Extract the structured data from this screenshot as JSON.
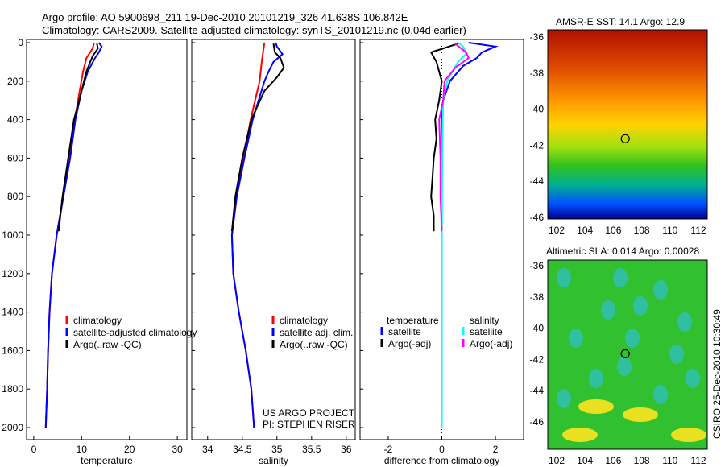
{
  "title": {
    "line1": "Argo profile: AO 5900698_211 19-Dec-2010 20101219_326 41.638S 106.842E",
    "line2": "Climatology: CARS2009. Satellite-adjusted climatology: synTS_20101219.nc (0.04d earlier)"
  },
  "side_label": "CSIRO 25-Dec-2010 10:30:49",
  "colors": {
    "climatology": "#ff0000",
    "satellite": "#0000ff",
    "argo": "#000000",
    "sal_satellite": "#00ffff",
    "sal_argo": "#ff00ff"
  },
  "chart_data": [
    {
      "type": "line",
      "xlabel": "temperature",
      "ylabel": "",
      "xlim": [
        -1.5,
        32
      ],
      "ylim": [
        2000,
        0
      ],
      "xticks": [
        0,
        10,
        20,
        30
      ],
      "yticks": [
        0,
        200,
        400,
        600,
        800,
        1000,
        1200,
        1400,
        1600,
        1800,
        2000
      ],
      "legend": [
        "climatology",
        "satellite-adjusted climatology",
        "Argo(..raw -QC)"
      ],
      "series": [
        {
          "name": "climatology",
          "color": "#ff0000",
          "depth": [
            0,
            30,
            80,
            150,
            250,
            400,
            600,
            800,
            1000,
            1200,
            1400,
            1600,
            1800,
            2000
          ],
          "values": [
            12.6,
            12.3,
            11,
            10.3,
            9.6,
            8.6,
            7.5,
            6.2,
            4.8,
            3.8,
            3.3,
            3.0,
            2.8,
            2.5
          ]
        },
        {
          "name": "satellite-adjusted climatology",
          "color": "#0000ff",
          "depth": [
            0,
            20,
            50,
            80,
            150,
            250,
            400,
            600,
            800,
            1000,
            1200,
            1400,
            1600,
            1800,
            2000
          ],
          "values": [
            13.6,
            14.2,
            13.6,
            12.8,
            11.3,
            10,
            8.7,
            7.6,
            6.2,
            4.8,
            3.8,
            3.3,
            3.0,
            2.8,
            2.5
          ]
        },
        {
          "name": "Argo(..raw -QC)",
          "color": "#000000",
          "depth": [
            5,
            30,
            70,
            100,
            150,
            200,
            300,
            400,
            600,
            800,
            980
          ],
          "values": [
            13.2,
            13.4,
            12.3,
            11.8,
            11,
            10.5,
            9.5,
            8.4,
            7.2,
            6,
            5.2
          ]
        }
      ]
    },
    {
      "type": "line",
      "xlabel": "salinity",
      "xlim": [
        33.77,
        36.13
      ],
      "ylim": [
        2000,
        0
      ],
      "xticks": [
        34,
        34.5,
        35,
        35.5,
        36
      ],
      "legend": [
        "climatology",
        "satellite adj. clim.",
        "Argo(..raw -QC)"
      ],
      "annotation": [
        "US ARGO PROJECT",
        "PI: STEPHEN RISER"
      ],
      "series": [
        {
          "name": "climatology",
          "color": "#ff0000",
          "depth": [
            0,
            100,
            200,
            400,
            600,
            800,
            1000,
            1200,
            1400,
            1600,
            1800,
            2000
          ],
          "values": [
            34.82,
            34.78,
            34.75,
            34.62,
            34.52,
            34.42,
            34.35,
            34.37,
            34.45,
            34.55,
            34.63,
            34.67
          ]
        },
        {
          "name": "satellite adj. clim.",
          "color": "#0000ff",
          "depth": [
            0,
            20,
            60,
            100,
            150,
            200,
            400,
            600,
            800,
            1000,
            1200,
            1400,
            1600,
            1800,
            2000
          ],
          "values": [
            34.98,
            35.0,
            35.08,
            34.95,
            34.88,
            34.82,
            34.65,
            34.53,
            34.42,
            34.35,
            34.37,
            34.45,
            34.55,
            34.63,
            34.67
          ]
        },
        {
          "name": "Argo(..raw -QC)",
          "color": "#000000",
          "depth": [
            5,
            50,
            80,
            130,
            180,
            250,
            400,
            600,
            800,
            980
          ],
          "values": [
            34.95,
            34.97,
            35.05,
            35.1,
            35.0,
            34.82,
            34.63,
            34.5,
            34.4,
            34.35
          ]
        }
      ]
    },
    {
      "type": "line",
      "xlabel": "difference from climatology",
      "xlim": [
        -3.05,
        3.05
      ],
      "ylim": [
        2000,
        0
      ],
      "xticks": [
        -2,
        0,
        2
      ],
      "legend_headers": [
        "temperature",
        "salinity"
      ],
      "legend": [
        "satellite",
        "Argo(-adj)",
        "satellite",
        "Argo(-adj)"
      ],
      "series": [
        {
          "name": "temperature satellite",
          "color": "#0000ff",
          "depth": [
            0,
            20,
            50,
            80,
            120,
            200,
            300,
            400,
            600,
            1000,
            2000
          ],
          "values": [
            1.0,
            2.0,
            1.5,
            1.3,
            0.8,
            0.3,
            0.05,
            0,
            0,
            0,
            0
          ]
        },
        {
          "name": "temperature Argo(-adj)",
          "color": "#000000",
          "depth": [
            5,
            50,
            100,
            200,
            300,
            400,
            500,
            600,
            700,
            800,
            900,
            980
          ],
          "values": [
            0.6,
            -0.4,
            -0.2,
            0,
            -0.1,
            -0.25,
            -0.2,
            -0.3,
            -0.35,
            -0.4,
            -0.3,
            -0.3
          ]
        },
        {
          "name": "salinity satellite",
          "color": "#00ffff",
          "depth": [
            0,
            20,
            60,
            100,
            200,
            300,
            500,
            1000,
            2000
          ],
          "values": [
            0.6,
            0.8,
            0.9,
            0.6,
            0.2,
            0.05,
            0.02,
            0,
            0
          ]
        },
        {
          "name": "salinity Argo(-adj)",
          "color": "#ff00ff",
          "depth": [
            5,
            50,
            80,
            130,
            200,
            300,
            400,
            600,
            800,
            980
          ],
          "values": [
            0.5,
            0.9,
            1.0,
            0.5,
            0.1,
            0.05,
            -0.1,
            -0.05,
            -0.05,
            0
          ]
        }
      ]
    },
    {
      "type": "heatmap",
      "title": "AMSR-E SST: 14.1  Argo: 12.9",
      "xticks": [
        102,
        104,
        106,
        108,
        110,
        112
      ],
      "yticks": [
        -36,
        -38,
        -40,
        -42,
        -44,
        -46
      ],
      "marker": [
        106.842,
        -41.638
      ]
    },
    {
      "type": "heatmap",
      "title": "Altimetric SLA: 0.014  Argo: 0.00028",
      "xticks": [
        102,
        104,
        106,
        108,
        110,
        112
      ],
      "yticks": [
        -36,
        -38,
        -40,
        -42,
        -44,
        -46
      ],
      "marker": [
        106.842,
        -41.638
      ]
    }
  ]
}
